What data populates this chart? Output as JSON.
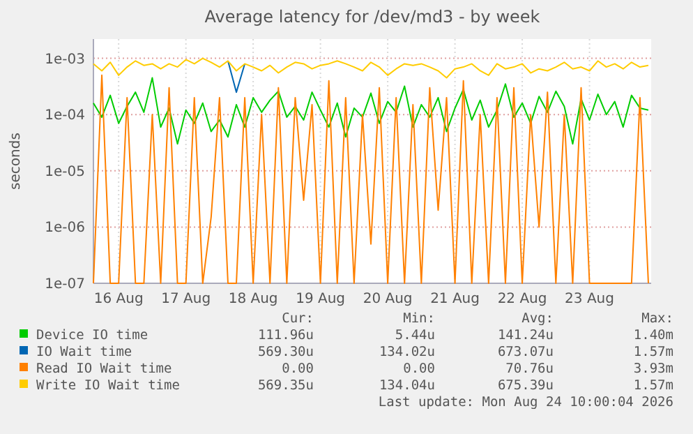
{
  "chart_data": {
    "type": "line",
    "title": "Average latency for /dev/md3 - by week",
    "ylabel": "seconds",
    "log": true,
    "grid": true,
    "legend": "bottom",
    "marker": "none",
    "line_style": "solid",
    "ylim": [
      1e-07,
      0.0022
    ],
    "yticks": [
      {
        "value": 1e-07,
        "label": "1e-07"
      },
      {
        "value": 1e-06,
        "label": "1e-06"
      },
      {
        "value": 1e-05,
        "label": "1e-05"
      },
      {
        "value": 0.0001,
        "label": "1e-04"
      },
      {
        "value": 0.001,
        "label": "1e-03"
      }
    ],
    "xlim": [
      "2026-08-16T03:00",
      "2026-08-24T10:00"
    ],
    "xticks": [
      {
        "value": "2026-08-16T12:00",
        "label": "16 Aug"
      },
      {
        "value": "2026-08-17T12:00",
        "label": "17 Aug"
      },
      {
        "value": "2026-08-18T12:00",
        "label": "18 Aug"
      },
      {
        "value": "2026-08-19T12:00",
        "label": "19 Aug"
      },
      {
        "value": "2026-08-20T12:00",
        "label": "20 Aug"
      },
      {
        "value": "2026-08-21T12:00",
        "label": "21 Aug"
      },
      {
        "value": "2026-08-22T12:00",
        "label": "22 Aug"
      },
      {
        "value": "2026-08-23T12:00",
        "label": "23 Aug"
      }
    ],
    "x": [
      "2026-08-16T03:00",
      "2026-08-16T06:00",
      "2026-08-16T09:00",
      "2026-08-16T12:00",
      "2026-08-16T15:00",
      "2026-08-16T18:00",
      "2026-08-16T21:00",
      "2026-08-17T00:00",
      "2026-08-17T03:00",
      "2026-08-17T06:00",
      "2026-08-17T09:00",
      "2026-08-17T12:00",
      "2026-08-17T15:00",
      "2026-08-17T18:00",
      "2026-08-17T21:00",
      "2026-08-18T00:00",
      "2026-08-18T03:00",
      "2026-08-18T06:00",
      "2026-08-18T09:00",
      "2026-08-18T12:00",
      "2026-08-18T15:00",
      "2026-08-18T18:00",
      "2026-08-18T21:00",
      "2026-08-19T00:00",
      "2026-08-19T03:00",
      "2026-08-19T06:00",
      "2026-08-19T09:00",
      "2026-08-19T12:00",
      "2026-08-19T15:00",
      "2026-08-19T18:00",
      "2026-08-19T21:00",
      "2026-08-20T00:00",
      "2026-08-20T03:00",
      "2026-08-20T06:00",
      "2026-08-20T09:00",
      "2026-08-20T12:00",
      "2026-08-20T15:00",
      "2026-08-20T18:00",
      "2026-08-20T21:00",
      "2026-08-21T00:00",
      "2026-08-21T03:00",
      "2026-08-21T06:00",
      "2026-08-21T09:00",
      "2026-08-21T12:00",
      "2026-08-21T15:00",
      "2026-08-21T18:00",
      "2026-08-21T21:00",
      "2026-08-22T00:00",
      "2026-08-22T03:00",
      "2026-08-22T06:00",
      "2026-08-22T09:00",
      "2026-08-22T12:00",
      "2026-08-22T15:00",
      "2026-08-22T18:00",
      "2026-08-22T21:00",
      "2026-08-23T00:00",
      "2026-08-23T03:00",
      "2026-08-23T06:00",
      "2026-08-23T09:00",
      "2026-08-23T12:00",
      "2026-08-23T15:00",
      "2026-08-23T18:00",
      "2026-08-23T21:00",
      "2026-08-24T00:00",
      "2026-08-24T03:00",
      "2026-08-24T06:00",
      "2026-08-24T09:00"
    ],
    "series": [
      {
        "name": "Device IO time",
        "color": "#00cc00",
        "values": [
          0.00016,
          9e-05,
          0.00022,
          7e-05,
          0.00014,
          0.00025,
          0.00011,
          0.00045,
          6e-05,
          0.00013,
          3e-05,
          0.00012,
          7e-05,
          0.00016,
          5e-05,
          8e-05,
          4e-05,
          0.00015,
          6e-05,
          0.0002,
          0.00011,
          0.00018,
          0.00026,
          9e-05,
          0.00014,
          8e-05,
          0.00025,
          0.00012,
          6e-05,
          0.00016,
          4e-05,
          0.00013,
          9e-05,
          0.00024,
          7e-05,
          0.00017,
          0.00011,
          0.00032,
          6e-05,
          0.00015,
          9e-05,
          0.0002,
          5e-05,
          0.00013,
          0.00028,
          8e-05,
          0.00018,
          6e-05,
          0.00012,
          0.00035,
          9e-05,
          0.00016,
          7e-05,
          0.00021,
          0.00011,
          0.00026,
          0.00014,
          3e-05,
          0.00019,
          8e-05,
          0.00023,
          0.0001,
          0.00017,
          6e-05,
          0.00022,
          0.00013,
          0.00012
        ]
      },
      {
        "name": "IO Wait time",
        "color": "#0066b3",
        "values": [
          null,
          null,
          null,
          null,
          null,
          null,
          null,
          null,
          null,
          null,
          null,
          null,
          null,
          null,
          null,
          null,
          0.0009,
          0.00025,
          0.0008,
          null,
          null,
          null,
          null,
          null,
          null,
          null,
          null,
          null,
          null,
          null,
          null,
          null,
          null,
          null,
          null,
          null,
          null,
          null,
          null,
          null,
          null,
          null,
          null,
          null,
          null,
          null,
          null,
          null,
          null,
          null,
          null,
          null,
          null,
          null,
          null,
          null,
          null,
          null,
          null,
          null,
          null,
          null,
          null,
          null,
          null,
          null,
          null
        ]
      },
      {
        "name": "Read IO Wait time",
        "color": "#ff8000",
        "values": [
          1e-07,
          0.0005,
          1e-07,
          1e-07,
          0.0002,
          1e-07,
          1e-07,
          0.0001,
          1e-07,
          0.0003,
          1e-07,
          1e-07,
          0.0002,
          1e-07,
          1.5e-06,
          0.0002,
          1e-07,
          1e-07,
          0.0002,
          1e-07,
          0.0001,
          1e-07,
          0.0003,
          1e-07,
          0.0002,
          3e-06,
          0.00015,
          1e-07,
          0.0004,
          1e-07,
          0.0002,
          1e-07,
          0.0001,
          5e-07,
          0.0003,
          1e-07,
          0.0002,
          1e-07,
          0.00015,
          1e-07,
          0.0003,
          2e-06,
          0.0002,
          1e-07,
          0.0004,
          1e-07,
          0.0001,
          1e-07,
          0.0002,
          1e-07,
          0.0003,
          1e-07,
          0.0001,
          1e-06,
          0.00025,
          1e-07,
          0.0001,
          1e-07,
          0.0003,
          1e-07,
          1e-07,
          1e-07,
          1e-07,
          1e-07,
          1e-07,
          0.0002,
          1e-07
        ]
      },
      {
        "name": "Write IO Wait time",
        "color": "#ffcc00",
        "values": [
          0.0008,
          0.0006,
          0.00085,
          0.0005,
          0.0007,
          0.0009,
          0.00075,
          0.0008,
          0.00065,
          0.0008,
          0.0007,
          0.00095,
          0.0008,
          0.001,
          0.00085,
          0.0007,
          0.0009,
          0.0006,
          0.0008,
          0.0007,
          0.0006,
          0.00075,
          0.00055,
          0.0007,
          0.00085,
          0.0008,
          0.00065,
          0.00075,
          0.0008,
          0.0009,
          0.0008,
          0.0007,
          0.0006,
          0.00085,
          0.0007,
          0.0005,
          0.00065,
          0.0008,
          0.00075,
          0.0008,
          0.0007,
          0.0006,
          0.00045,
          0.00065,
          0.0007,
          0.0008,
          0.0006,
          0.0005,
          0.0008,
          0.00065,
          0.0007,
          0.0008,
          0.00055,
          0.00065,
          0.0006,
          0.0007,
          0.00085,
          0.00065,
          0.0007,
          0.0006,
          0.0009,
          0.0007,
          0.0008,
          0.00065,
          0.00085,
          0.0007,
          0.00075
        ]
      }
    ],
    "annotations": [
      "Cur:",
      "Min:",
      "Avg:",
      "Max:",
      "111.96u",
      "5.44u",
      "141.24u",
      "1.40m",
      "569.30u",
      "134.02u",
      "673.07u",
      "1.57m",
      "0.00",
      "0.00",
      "70.76u",
      "3.93m",
      "569.35u",
      "134.04u",
      "675.39u",
      "1.57m",
      "Last update: Mon Aug 24 10:00:04 2026"
    ]
  }
}
